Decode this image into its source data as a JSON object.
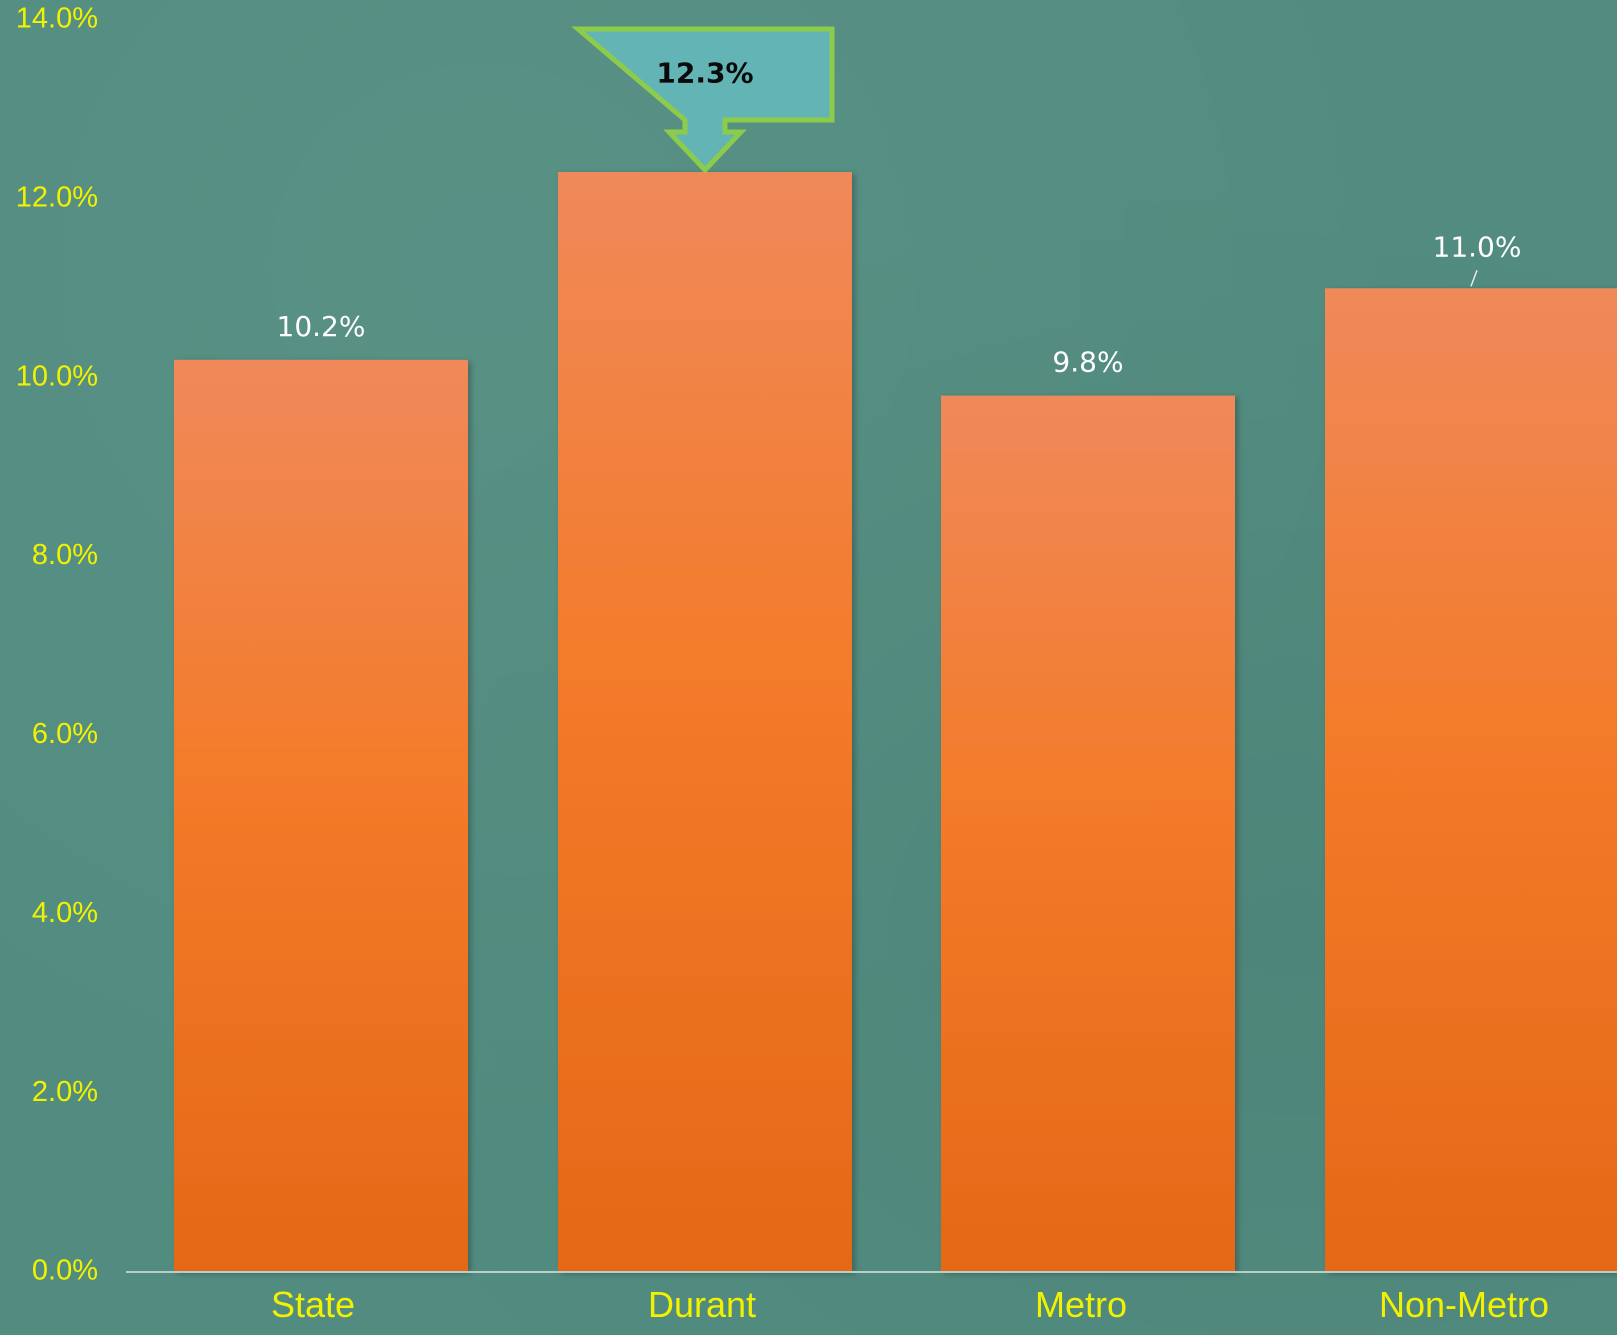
{
  "chart_data": {
    "type": "bar",
    "title": "",
    "xlabel": "",
    "ylabel": "",
    "categories": [
      "State",
      "Durant",
      "Metro",
      "Non-Metro"
    ],
    "values": [
      10.2,
      12.3,
      9.8,
      11.0
    ],
    "value_labels": [
      "10.2%",
      "12.3%",
      "9.8%",
      "11.0%"
    ],
    "highlight_index": 1,
    "ylim": [
      0,
      14
    ],
    "yticks": [
      0,
      2,
      4,
      6,
      8,
      10,
      12,
      14
    ],
    "ytick_labels": [
      "0.0%",
      "2.0%",
      "4.0%",
      "6.0%",
      "8.0%",
      "10.0%",
      "12.0%",
      "14.0%"
    ],
    "grid": false,
    "legend": "none",
    "colors": {
      "background": "#528c80",
      "bar_top": "#f0895a",
      "bar_mid": "#f37b2a",
      "bar_bottom": "#e56816",
      "tick_label": "#f2f200",
      "value_label": "#ffffff",
      "callout_fill": "#63b5b5",
      "callout_border": "#8ccc4a",
      "callout_text": "#0a0a0a",
      "axis_line": "#b8cfc9"
    }
  }
}
